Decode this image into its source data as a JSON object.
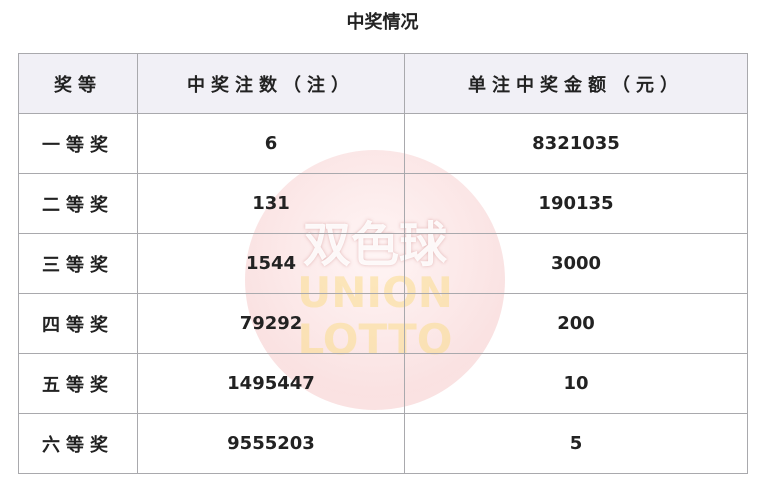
{
  "title": "中奖情况",
  "headers": [
    "奖等",
    "中奖注数（注）",
    "单注中奖金额（元）"
  ],
  "rows": [
    {
      "level": "一等奖",
      "count": "6",
      "amount": "8321035"
    },
    {
      "level": "二等奖",
      "count": "131",
      "amount": "190135"
    },
    {
      "level": "三等奖",
      "count": "1544",
      "amount": "3000"
    },
    {
      "level": "四等奖",
      "count": "79292",
      "amount": "200"
    },
    {
      "level": "五等奖",
      "count": "1495447",
      "amount": "10"
    },
    {
      "level": "六等奖",
      "count": "9555203",
      "amount": "5"
    }
  ],
  "watermark": {
    "cn": "双色球",
    "en1": "UNION",
    "en2": "LOTTO"
  }
}
